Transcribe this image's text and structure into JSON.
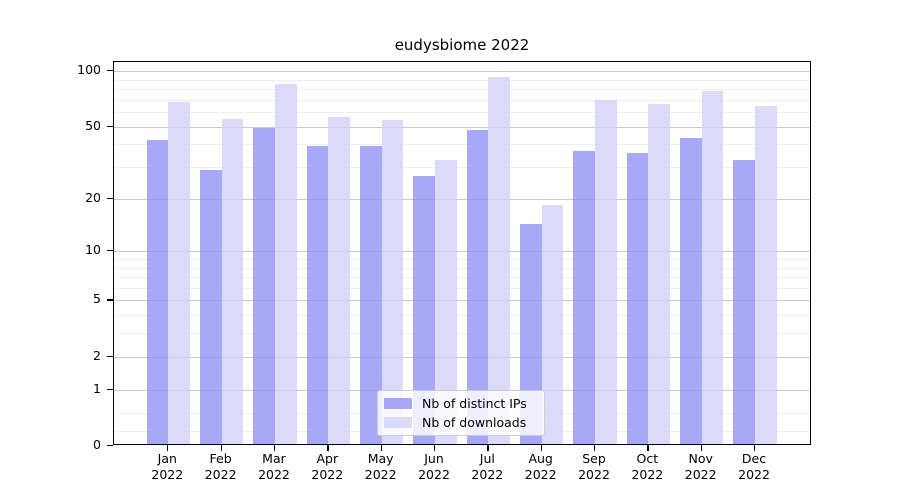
{
  "title": "eudysbiome 2022",
  "chart_data": {
    "type": "bar",
    "title": "eudysbiome 2022",
    "categories": [
      "Jan 2022",
      "Feb 2022",
      "Mar 2022",
      "Apr 2022",
      "May 2022",
      "Jun 2022",
      "Jul 2022",
      "Aug 2022",
      "Sep 2022",
      "Oct 2022",
      "Nov 2022",
      "Dec 2022"
    ],
    "x_tick_labels": [
      "Jan\n2022",
      "Feb\n2022",
      "Mar\n2022",
      "Apr\n2022",
      "May\n2022",
      "Jun\n2022",
      "Jul\n2022",
      "Aug\n2022",
      "Sep\n2022",
      "Oct\n2022",
      "Nov\n2022",
      "Dec\n2022"
    ],
    "series": [
      {
        "name": "Nb of distinct IPs",
        "color": "#a8a8f9",
        "fill_rgba": "rgba(146,146,248,0.8)",
        "values": [
          41,
          28,
          48,
          38,
          38,
          26,
          47,
          14,
          36,
          35,
          42,
          32
        ]
      },
      {
        "name": "Nb of downloads",
        "color": "#dbdbf9",
        "fill_rgba": "rgba(210,210,248,0.8)",
        "values": [
          66,
          54,
          83,
          55,
          53,
          32,
          91,
          18,
          68,
          65,
          76,
          63
        ]
      }
    ],
    "xlabel": "",
    "ylabel": "",
    "yscale": "log1p",
    "ylim": [
      0,
      112
    ],
    "y_major_ticks": [
      0,
      1,
      2,
      5,
      10,
      20,
      50,
      100
    ],
    "y_minor_gridlines": [
      0.2,
      0.5,
      3,
      4,
      6,
      7,
      8,
      9,
      30,
      40,
      60,
      70,
      80,
      90
    ],
    "grid": true,
    "legend_position": "lower center",
    "legend_labels": [
      "Nb of distinct IPs",
      "Nb of downloads"
    ]
  }
}
